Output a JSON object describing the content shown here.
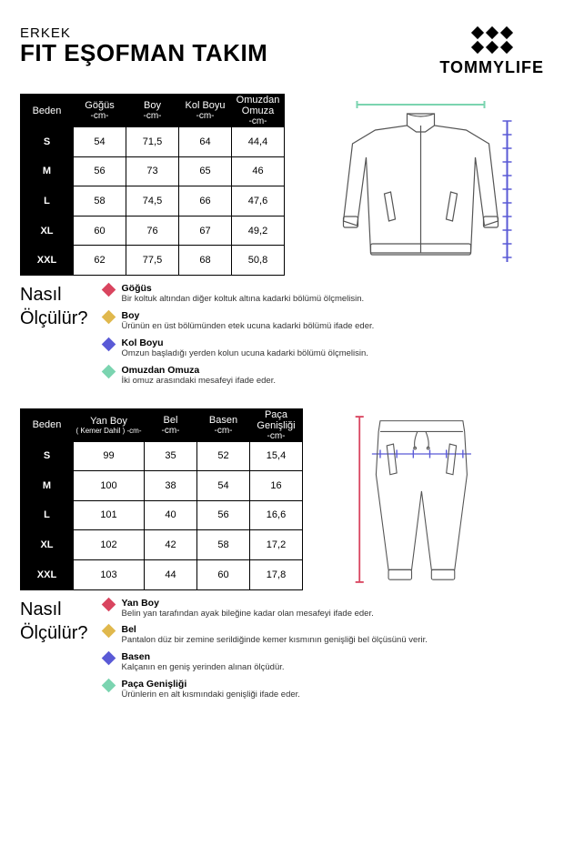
{
  "header": {
    "subtitle": "ERKEK",
    "title": "FIT EŞOFMAN TAKIM",
    "brand": "TOMMYLIFE"
  },
  "colors": {
    "gogus": "#d9455f",
    "boy": "#e0b84d",
    "kol": "#5a5ad6",
    "omuz": "#7bd4b0",
    "yanboy": "#d9455f",
    "bel": "#e0b84d",
    "basen": "#5a5ad6",
    "paca": "#7bd4b0"
  },
  "table1": {
    "headers": [
      {
        "main": "Beden",
        "sub": ""
      },
      {
        "main": "Göğüs",
        "sub": "-cm-"
      },
      {
        "main": "Boy",
        "sub": "-cm-"
      },
      {
        "main": "Kol Boyu",
        "sub": "-cm-"
      },
      {
        "main": "Omuzdan Omuza",
        "sub": "-cm-"
      }
    ],
    "rows": [
      [
        "S",
        "54",
        "71,5",
        "64",
        "44,4"
      ],
      [
        "M",
        "56",
        "73",
        "65",
        "46"
      ],
      [
        "L",
        "58",
        "74,5",
        "66",
        "47,6"
      ],
      [
        "XL",
        "60",
        "76",
        "67",
        "49,2"
      ],
      [
        "XXL",
        "62",
        "77,5",
        "68",
        "50,8"
      ]
    ]
  },
  "howto1": {
    "title1": "Nasıl",
    "title2": "Ölçülür?",
    "items": [
      {
        "label": "Göğüs",
        "desc": "Bir koltuk altından diğer koltuk altına kadarki bölümü ölçmelisin.",
        "color": "#d9455f"
      },
      {
        "label": "Boy",
        "desc": "Ürünün en üst bölümünden etek ucuna kadarki bölümü ifade eder.",
        "color": "#e0b84d"
      },
      {
        "label": "Kol Boyu",
        "desc": "Omzun başladığı yerden kolun ucuna kadarki bölümü ölçmelisin.",
        "color": "#5a5ad6"
      },
      {
        "label": "Omuzdan Omuza",
        "desc": "İki omuz arasındaki mesafeyi ifade eder.",
        "color": "#7bd4b0"
      }
    ]
  },
  "table2": {
    "headers": [
      {
        "main": "Beden",
        "sub": ""
      },
      {
        "main": "Yan Boy",
        "sub": "( Kemer Dahil ) -cm-"
      },
      {
        "main": "Bel",
        "sub": "-cm-"
      },
      {
        "main": "Basen",
        "sub": "-cm-"
      },
      {
        "main": "Paça Genişliği",
        "sub": "-cm-"
      }
    ],
    "rows": [
      [
        "S",
        "99",
        "35",
        "52",
        "15,4"
      ],
      [
        "M",
        "100",
        "38",
        "54",
        "16"
      ],
      [
        "L",
        "101",
        "40",
        "56",
        "16,6"
      ],
      [
        "XL",
        "102",
        "42",
        "58",
        "17,2"
      ],
      [
        "XXL",
        "103",
        "44",
        "60",
        "17,8"
      ]
    ]
  },
  "howto2": {
    "title1": "Nasıl",
    "title2": "Ölçülür?",
    "items": [
      {
        "label": "Yan Boy",
        "desc": "Belin yan tarafından ayak bileğine kadar olan mesafeyi ifade eder.",
        "color": "#d9455f"
      },
      {
        "label": "Bel",
        "desc": "Pantalon düz bir zemine serildiğinde kemer kısmının genişliği bel ölçüsünü verir.",
        "color": "#e0b84d"
      },
      {
        "label": "Basen",
        "desc": "Kalçanın en geniş yerinden alınan ölçüdür.",
        "color": "#5a5ad6"
      },
      {
        "label": "Paça Genişliği",
        "desc": "Ürünlerin en alt kısmındaki genişliği ifade eder.",
        "color": "#7bd4b0"
      }
    ]
  }
}
